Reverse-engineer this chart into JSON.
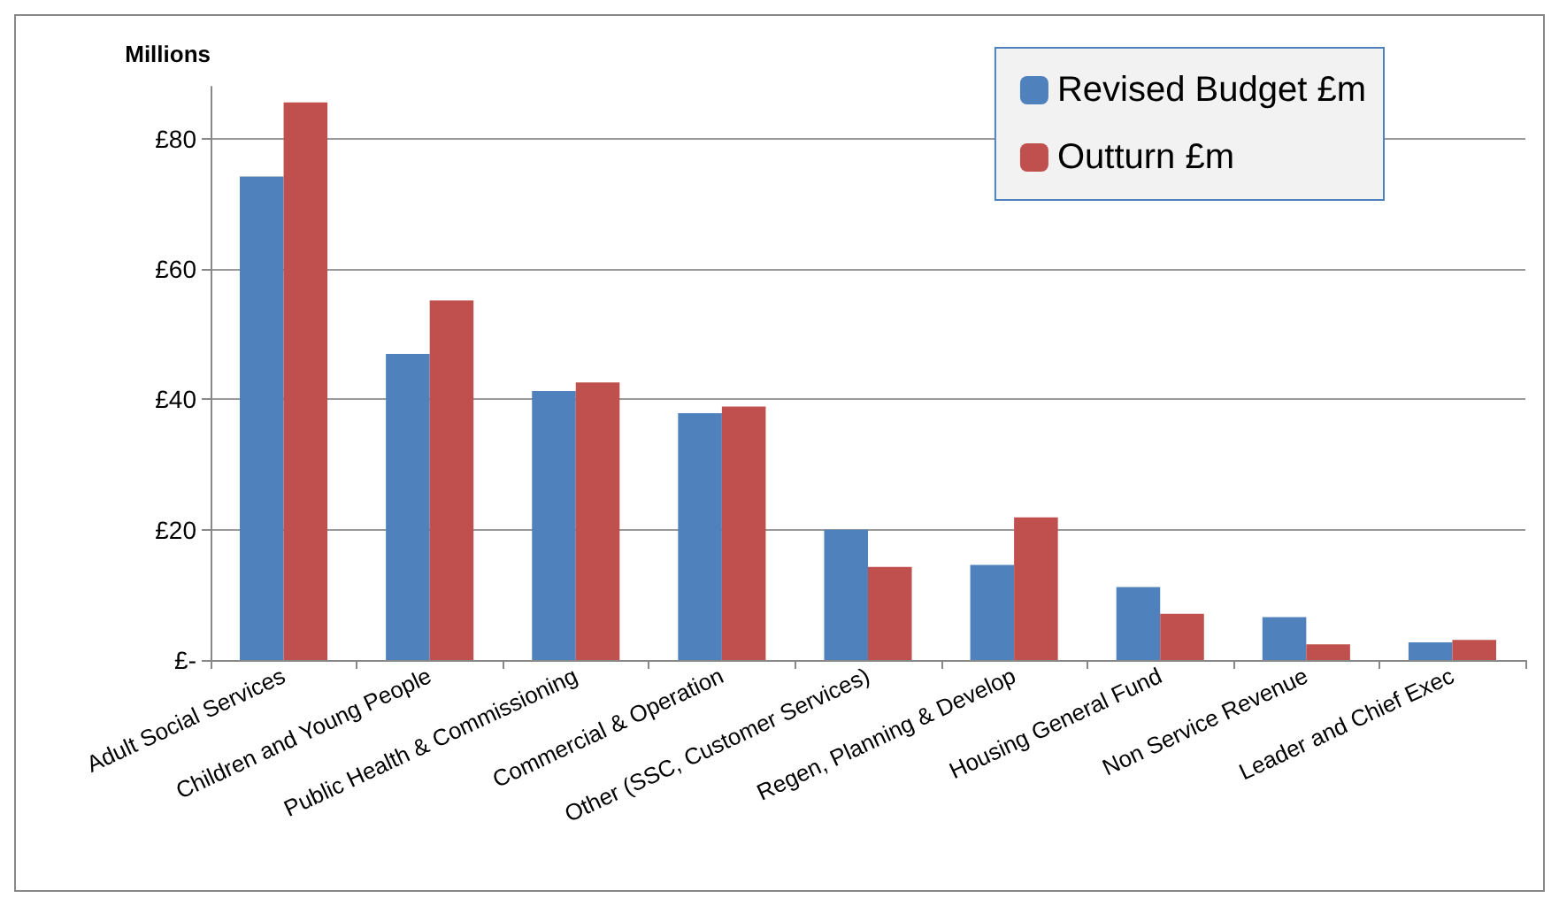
{
  "chart_data": {
    "type": "bar",
    "ylabel": "Millions",
    "categories": [
      "Adult Social Services",
      "Children and Young People",
      "Public Health & Commissioning",
      "Commercial & Operation",
      "Other (SSC, Customer Services)",
      "Regen, Planning & Develop",
      "Housing General Fund",
      "Non Service Revenue",
      "Leader and Chief Exec"
    ],
    "series": [
      {
        "name": "Revised Budget £m",
        "color": "#4f81bd",
        "values": [
          74.2,
          47.0,
          41.3,
          37.9,
          20.0,
          14.6,
          11.2,
          6.6,
          2.7
        ]
      },
      {
        "name": "Outturn £m",
        "color": "#c0504d",
        "values": [
          85.6,
          55.2,
          42.6,
          38.9,
          14.3,
          21.9,
          7.1,
          2.4,
          3.1
        ]
      }
    ],
    "ylim": [
      0,
      88
    ],
    "yticks": [
      {
        "value": 0,
        "label": "£-"
      },
      {
        "value": 20,
        "label": "£20"
      },
      {
        "value": 40,
        "label": "£40"
      },
      {
        "value": 60,
        "label": "£60"
      },
      {
        "value": 80,
        "label": "£80"
      }
    ],
    "grid": "y",
    "legend": "top right"
  }
}
